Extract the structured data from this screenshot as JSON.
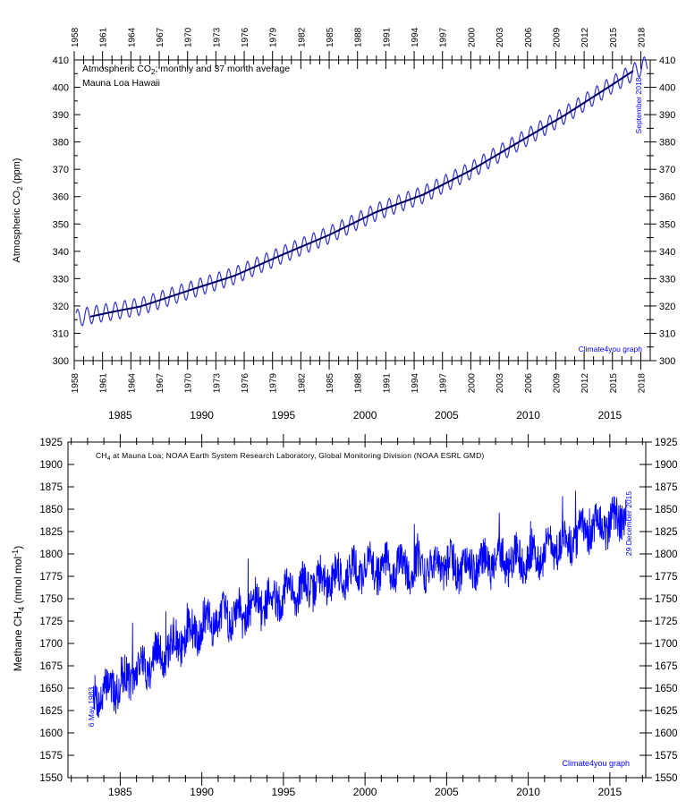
{
  "chart_data": [
    {
      "type": "line",
      "title": "Atmospheric CO2; monthly and 37 month average",
      "subtitle": "Mauna Loa Hawaii",
      "title_prefix": "Atmospheric CO",
      "title_sub": "2",
      "title_suffix": "; monthly and 37 month average",
      "ylabel": "Atmospheric CO2 (ppm)",
      "ylabel_prefix": "Atmospheric CO",
      "ylabel_sub": "2",
      "ylabel_suffix": " (ppm)",
      "end_date_label": "September 2018",
      "credit": "Climate4you graph",
      "xlim": [
        1958,
        2019
      ],
      "ylim": [
        300,
        410
      ],
      "x_ticks": [
        1958,
        1961,
        1964,
        1967,
        1970,
        1973,
        1976,
        1979,
        1982,
        1985,
        1988,
        1991,
        1994,
        1997,
        2000,
        2003,
        2006,
        2009,
        2012,
        2015,
        2018
      ],
      "x_tick_labels": [
        "1958",
        "1961",
        "1964",
        "1967",
        "1970",
        "1973",
        "1976",
        "1979",
        "1982",
        "1985",
        "1988",
        "1991",
        "1994",
        "1997",
        "2000",
        "2003",
        "2006",
        "2009",
        "2012",
        "2015",
        "2018"
      ],
      "y_ticks": [
        300,
        310,
        320,
        330,
        340,
        350,
        360,
        370,
        380,
        390,
        400,
        410
      ],
      "y_tick_labels": [
        "300",
        "310",
        "320",
        "330",
        "340",
        "350",
        "360",
        "370",
        "380",
        "390",
        "400",
        "410"
      ],
      "grid": false,
      "series": [
        {
          "kind": "monthly",
          "trend_x": [
            1958.2,
            1960,
            1965,
            1970,
            1975,
            1980,
            1985,
            1990,
            1995,
            2000,
            2005,
            2010,
            2015,
            2018.7
          ],
          "trend_y": [
            315.5,
            316.8,
            319.8,
            325.5,
            331.1,
            338.7,
            346.0,
            354.4,
            360.8,
            369.6,
            379.8,
            389.9,
            401.0,
            408.6
          ],
          "seasonal_amplitude": 3.2,
          "color": "#3333cc"
        },
        {
          "kind": "37-month average",
          "x": [
            1959.7,
            1962,
            1965,
            1970,
            1975,
            1980,
            1985,
            1990,
            1995,
            2000,
            2005,
            2010,
            2015,
            2017.2
          ],
          "y": [
            316.1,
            317.8,
            319.8,
            325.5,
            331.1,
            338.7,
            346.0,
            354.4,
            360.8,
            369.6,
            379.8,
            389.9,
            401.0,
            406.0
          ],
          "color": "#000066"
        }
      ],
      "colors": {
        "accent": "#0000ff",
        "series": "#3333cc"
      }
    },
    {
      "type": "line",
      "title": "CH4 at Mauna Loa; NOAA Earth System Research Laboratory, Global Monitoring Division (NOAA ESRL GMD)",
      "title_prefix": "CH",
      "title_sub": "4",
      "title_suffix": " at Mauna Loa; NOAA Earth System Research Laboratory, Global Monitoring Division (NOAA ESRL GMD)",
      "ylabel": "Methane CH4 (nmol mol-1)",
      "ylabel_prefix": "Methane CH",
      "ylabel_sub": "4",
      "ylabel_mid": " (nmol mol",
      "ylabel_sup": "-1",
      "ylabel_suffix": ")",
      "start_date_label": "6 May 1983",
      "end_date_label": "29 December 2015",
      "credit": "Climate4you graph",
      "xlim": [
        1981.8,
        2017.2
      ],
      "ylim": [
        1550,
        1925
      ],
      "x_ticks": [
        1985,
        1990,
        1995,
        2000,
        2005,
        2010,
        2015
      ],
      "x_tick_labels": [
        "1985",
        "1990",
        "1995",
        "2000",
        "2005",
        "2010",
        "2015"
      ],
      "y_ticks": [
        1550,
        1575,
        1600,
        1625,
        1650,
        1675,
        1700,
        1725,
        1750,
        1775,
        1800,
        1825,
        1850,
        1875,
        1900,
        1925
      ],
      "y_tick_labels": [
        "1550",
        "1575",
        "1600",
        "1625",
        "1650",
        "1675",
        "1700",
        "1725",
        "1750",
        "1775",
        "1800",
        "1825",
        "1850",
        "1875",
        "1900",
        "1925"
      ],
      "grid": false,
      "series": [
        {
          "kind": "daily",
          "x_range": [
            1983.35,
            2016.0
          ],
          "trend_x": [
            1983.35,
            1985,
            1990,
            1995,
            2000,
            2005,
            2010,
            2015,
            2016.0
          ],
          "trend_y": [
            1640,
            1655,
            1720,
            1755,
            1785,
            1785,
            1795,
            1835,
            1845
          ],
          "spread": 22,
          "color": "#0000ff"
        }
      ],
      "colors": {
        "accent": "#0000ff",
        "series": "#0000ff"
      }
    }
  ]
}
